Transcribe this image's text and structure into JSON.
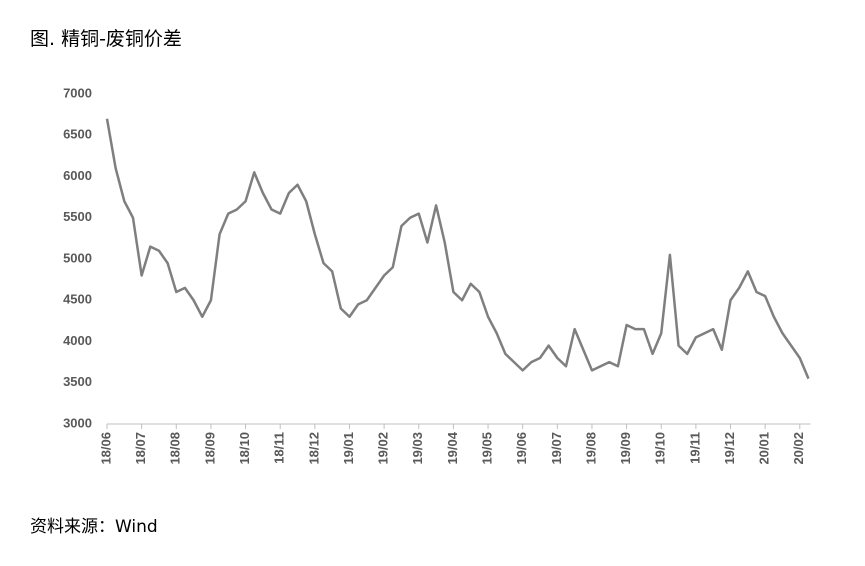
{
  "chart_data": {
    "type": "line",
    "title": "图. 精铜-废铜价差",
    "source": "资料来源：Wind",
    "categories": [
      "18/06",
      null,
      null,
      null,
      "18/07",
      null,
      null,
      null,
      "18/08",
      null,
      null,
      null,
      "18/09",
      null,
      null,
      null,
      "18/10",
      null,
      null,
      null,
      "18/11",
      null,
      null,
      null,
      "18/12",
      null,
      null,
      null,
      "19/01",
      null,
      null,
      null,
      "19/02",
      null,
      null,
      null,
      "19/03",
      null,
      null,
      null,
      "19/04",
      null,
      null,
      null,
      "19/05",
      null,
      null,
      null,
      "19/06",
      null,
      null,
      null,
      "19/07",
      null,
      null,
      null,
      "19/08",
      null,
      null,
      null,
      "19/09",
      null,
      null,
      null,
      "19/10",
      null,
      null,
      null,
      "19/11",
      null,
      null,
      null,
      "19/12",
      null,
      null,
      null,
      "20/01",
      null,
      null,
      null,
      "20/02",
      null
    ],
    "values": [
      6700,
      6100,
      5700,
      5500,
      4800,
      5150,
      5100,
      4950,
      4600,
      4650,
      4500,
      4300,
      4500,
      5300,
      5550,
      5600,
      5700,
      6050,
      5800,
      5600,
      5550,
      5800,
      5900,
      5700,
      5300,
      4950,
      4850,
      4400,
      4300,
      4450,
      4500,
      4650,
      4800,
      4900,
      5400,
      5500,
      5550,
      5200,
      5650,
      5200,
      4600,
      4500,
      4700,
      4600,
      4300,
      4100,
      3850,
      3750,
      3650,
      3750,
      3800,
      3950,
      3800,
      3700,
      4150,
      3900,
      3650,
      3700,
      3750,
      3700,
      4200,
      4150,
      4150,
      3850,
      4100,
      5050,
      3950,
      3850,
      4050,
      4100,
      4150,
      3900,
      4500,
      4650,
      4850,
      4600,
      4550,
      4300,
      4100,
      3950,
      3800,
      3550
    ],
    "color": "#7f7f7f",
    "ylim": [
      3000,
      7000
    ],
    "yticks": [
      3000,
      3500,
      4000,
      4500,
      5000,
      5500,
      6000,
      6500,
      7000
    ],
    "grid": false
  }
}
